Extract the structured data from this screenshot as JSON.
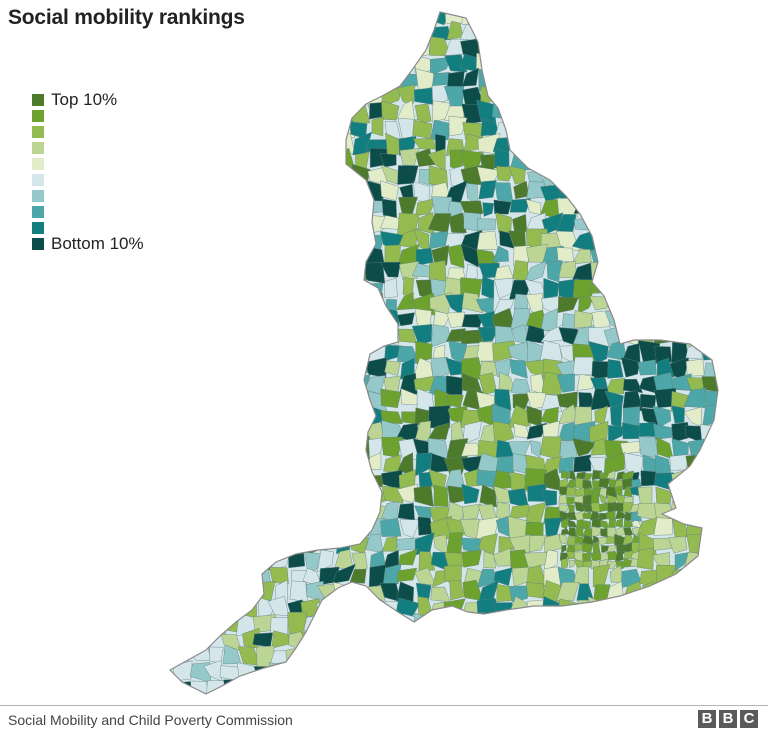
{
  "title": "Social mobility rankings",
  "legend": {
    "colors": [
      "#4e7a2c",
      "#6ea22f",
      "#94bb4f",
      "#bcd494",
      "#e2ecc9",
      "#d4e6ea",
      "#95c9c9",
      "#4da7a8",
      "#137e7f",
      "#0c4d4a"
    ],
    "labels": [
      "Top 10%",
      "",
      "",
      "",
      "",
      "",
      "",
      "",
      "",
      "Bottom 10%"
    ]
  },
  "source": "Social Mobility and Child Poverty Commission",
  "logo": [
    "B",
    "B",
    "C"
  ]
}
